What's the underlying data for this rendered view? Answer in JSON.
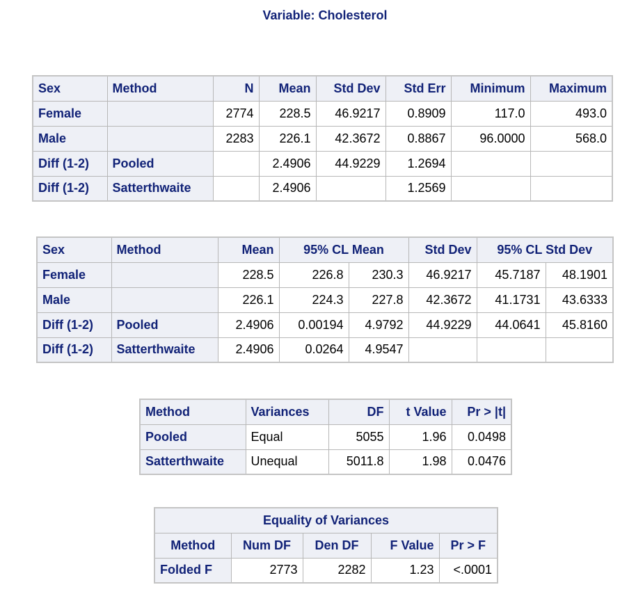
{
  "title": "Variable: Cholesterol",
  "table1": {
    "headers": [
      "Sex",
      "Method",
      "N",
      "Mean",
      "Std Dev",
      "Std Err",
      "Minimum",
      "Maximum"
    ],
    "rows": [
      [
        "Female",
        "",
        "2774",
        "228.5",
        "46.9217",
        "0.8909",
        "117.0",
        "493.0"
      ],
      [
        "Male",
        "",
        "2283",
        "226.1",
        "42.3672",
        "0.8867",
        "96.0000",
        "568.0"
      ],
      [
        "Diff (1-2)",
        "Pooled",
        "",
        "2.4906",
        "44.9229",
        "1.2694",
        "",
        ""
      ],
      [
        "Diff (1-2)",
        "Satterthwaite",
        "",
        "2.4906",
        "",
        "1.2569",
        "",
        ""
      ]
    ]
  },
  "table2": {
    "headers": [
      "Sex",
      "Method",
      "Mean",
      "95% CL Mean",
      "Std Dev",
      "95% CL Std Dev"
    ],
    "rows": [
      [
        "Female",
        "",
        "228.5",
        "226.8",
        "230.3",
        "46.9217",
        "45.7187",
        "48.1901"
      ],
      [
        "Male",
        "",
        "226.1",
        "224.3",
        "227.8",
        "42.3672",
        "41.1731",
        "43.6333"
      ],
      [
        "Diff (1-2)",
        "Pooled",
        "2.4906",
        "0.00194",
        "4.9792",
        "44.9229",
        "44.0641",
        "45.8160"
      ],
      [
        "Diff (1-2)",
        "Satterthwaite",
        "2.4906",
        "0.0264",
        "4.9547",
        "",
        "",
        ""
      ]
    ]
  },
  "table3": {
    "headers": [
      "Method",
      "Variances",
      "DF",
      "t Value",
      "Pr > |t|"
    ],
    "rows": [
      [
        "Pooled",
        "Equal",
        "5055",
        "1.96",
        "0.0498"
      ],
      [
        "Satterthwaite",
        "Unequal",
        "5011.8",
        "1.98",
        "0.0476"
      ]
    ]
  },
  "table4": {
    "caption": "Equality of Variances",
    "headers": [
      "Method",
      "Num DF",
      "Den DF",
      "F Value",
      "Pr > F"
    ],
    "rows": [
      [
        "Folded F",
        "2773",
        "2282",
        "1.23",
        "<.0001"
      ]
    ]
  }
}
